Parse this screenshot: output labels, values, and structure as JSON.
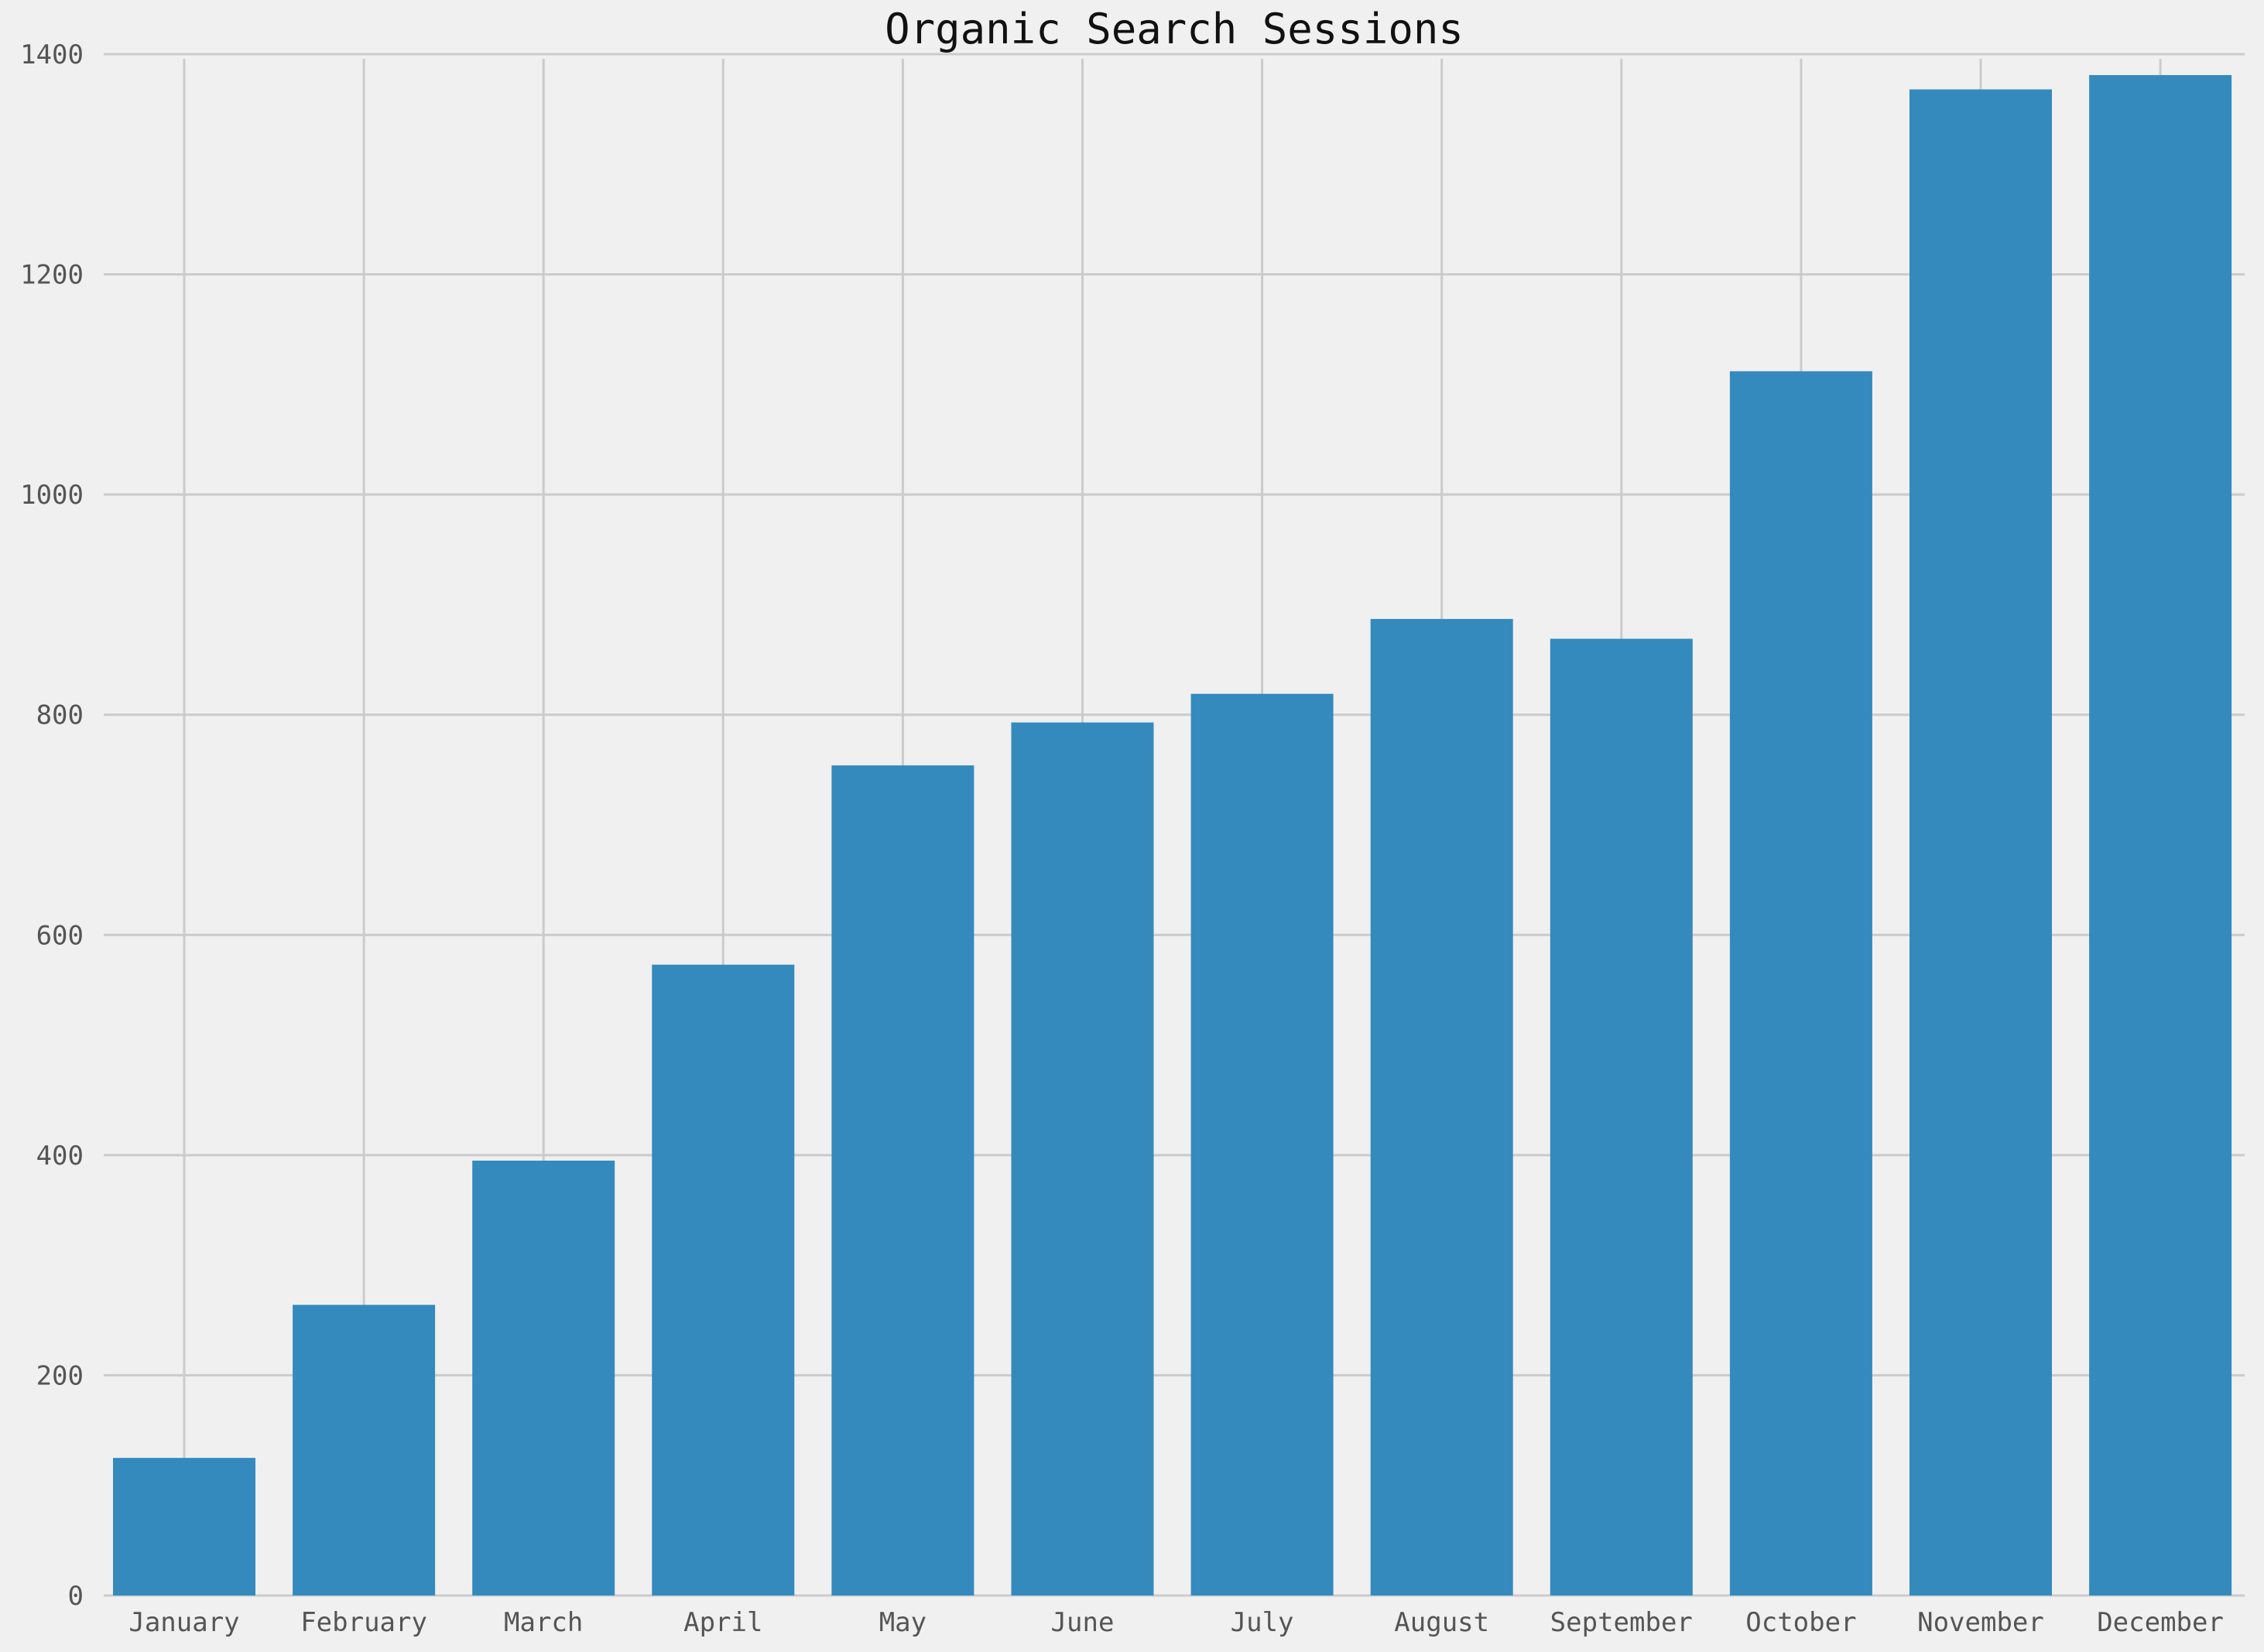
{
  "chart_data": {
    "type": "bar",
    "title": "Organic Search Sessions",
    "xlabel": "",
    "ylabel": "",
    "categories": [
      "January",
      "February",
      "March",
      "April",
      "May",
      "June",
      "July",
      "August",
      "September",
      "October",
      "November",
      "December"
    ],
    "values": [
      125,
      264,
      395,
      573,
      754,
      793,
      819,
      887,
      869,
      1112,
      1368,
      1381
    ],
    "ylim": [
      0,
      1400
    ],
    "yticks": [
      "0",
      "200",
      "400",
      "600",
      "800",
      "1000",
      "1200",
      "1400"
    ],
    "grid": true,
    "legend": "none",
    "colors": {
      "bar": "#348abd",
      "background": "#f0f0f0",
      "grid": "#cbcbcb"
    }
  }
}
